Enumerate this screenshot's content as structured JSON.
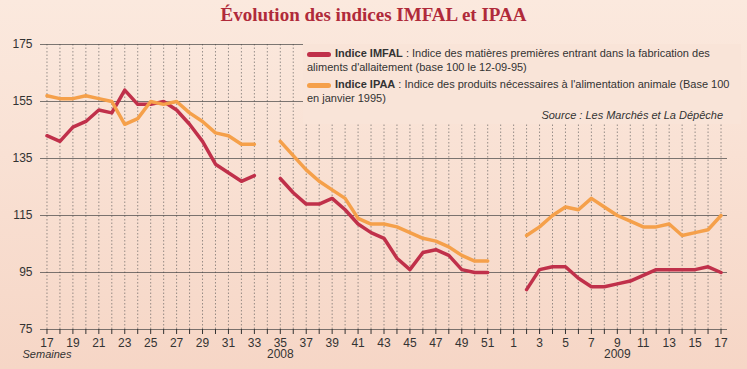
{
  "chart_data": {
    "type": "line",
    "title": "Évolution des indices IMFAL et IPAA",
    "x_label": "Semaines",
    "periods": [
      {
        "label": "2008",
        "category": "35"
      },
      {
        "label": "2009",
        "category": "9"
      }
    ],
    "source": "Source : Les Marchés et La Dépêche",
    "categories": [
      "17",
      null,
      "19",
      null,
      "21",
      null,
      "23",
      null,
      "25",
      null,
      "27",
      null,
      "29",
      null,
      "31",
      null,
      "33",
      null,
      "35",
      null,
      "37",
      null,
      "39",
      null,
      "41",
      null,
      "43",
      null,
      "45",
      null,
      "47",
      null,
      "49",
      null,
      "51",
      null,
      "1",
      null,
      "3",
      null,
      "5",
      null,
      "7",
      null,
      "9",
      null,
      "11",
      null,
      "13",
      null,
      "15",
      null,
      "17"
    ],
    "series": [
      {
        "name": "Indice IMFAL",
        "description": ": Indice des matières premières entrant dans la fabrication des aliments d'allaitement (base 100 le 12-09-95)",
        "color": "#c0304a",
        "values": [
          143,
          141,
          146,
          148,
          152,
          151,
          159,
          154,
          154,
          155,
          152,
          147,
          141,
          133,
          130,
          127,
          129,
          null,
          128,
          123,
          119,
          119,
          121,
          117,
          112,
          109,
          107,
          100,
          96,
          102,
          103,
          101,
          96,
          95,
          95,
          null,
          null,
          89,
          96,
          97,
          97,
          93,
          90,
          90,
          91,
          92,
          94,
          96,
          96,
          96,
          96,
          97,
          95
        ]
      },
      {
        "name": "Indice IPAA",
        "description": ": Indice des produits nécessaires à l'alimentation animale (Base 100 en janvier 1995)",
        "color": "#f5a04a",
        "values": [
          157,
          156,
          156,
          157,
          156,
          155,
          147,
          149,
          155,
          154,
          155,
          151,
          148,
          144,
          143,
          140,
          140,
          null,
          141,
          136,
          131,
          127,
          124,
          121,
          114,
          112,
          112,
          111,
          109,
          107,
          106,
          104,
          101,
          99,
          99,
          null,
          null,
          108,
          111,
          115,
          118,
          117,
          121,
          118,
          115,
          113,
          111,
          111,
          112,
          108,
          109,
          110,
          115
        ]
      }
    ],
    "ylim": [
      75,
      175
    ],
    "yticks": [
      75,
      95,
      115,
      135,
      155,
      175
    ],
    "grid": true,
    "legend": "top-right"
  }
}
